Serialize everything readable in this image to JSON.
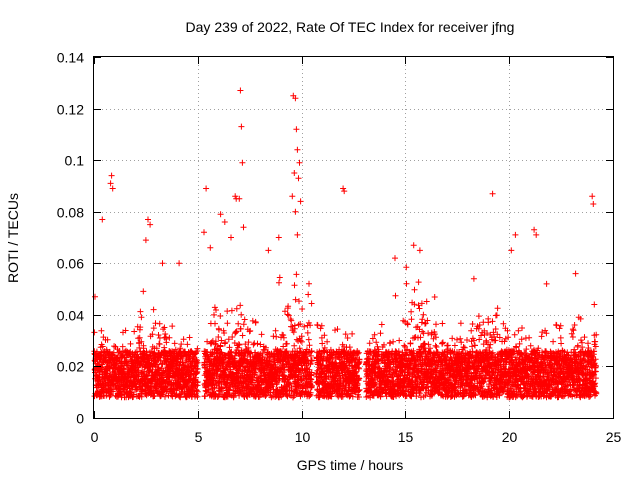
{
  "chart_data": {
    "type": "scatter",
    "title": "Day 239 of 2022, Rate Of TEC Index for receiver jfng",
    "xlabel": "GPS time / hours",
    "ylabel": "ROTI / TECUs",
    "xlim": [
      0,
      25
    ],
    "ylim": [
      0,
      0.14
    ],
    "xticks": [
      0,
      5,
      10,
      15,
      20,
      25
    ],
    "xtick_labels": [
      "0",
      "5",
      "10",
      "15",
      "20",
      "25"
    ],
    "yticks": [
      0,
      0.02,
      0.04,
      0.06,
      0.08,
      0.1,
      0.12,
      0.14
    ],
    "ytick_labels": [
      "0",
      "0.02",
      "0.04",
      "0.06",
      "0.08",
      "0.1",
      "0.12",
      "0.14"
    ],
    "grid": true,
    "marker": "+",
    "color": "#ff0000",
    "series": [
      {
        "name": "ROTI",
        "outliers": [
          [
            0.05,
            0.047
          ],
          [
            0.4,
            0.077
          ],
          [
            0.8,
            0.091
          ],
          [
            0.85,
            0.094
          ],
          [
            0.9,
            0.089
          ],
          [
            2.6,
            0.077
          ],
          [
            2.7,
            0.075
          ],
          [
            2.5,
            0.069
          ],
          [
            3.3,
            0.06
          ],
          [
            4.1,
            0.06
          ],
          [
            5.4,
            0.089
          ],
          [
            5.3,
            0.072
          ],
          [
            5.6,
            0.066
          ],
          [
            6.1,
            0.079
          ],
          [
            6.3,
            0.076
          ],
          [
            6.6,
            0.07
          ],
          [
            6.8,
            0.086
          ],
          [
            6.85,
            0.085
          ],
          [
            7.05,
            0.127
          ],
          [
            7.1,
            0.113
          ],
          [
            7.15,
            0.099
          ],
          [
            7.0,
            0.085
          ],
          [
            7.2,
            0.074
          ],
          [
            8.4,
            0.065
          ],
          [
            8.9,
            0.07
          ],
          [
            9.6,
            0.125
          ],
          [
            9.7,
            0.124
          ],
          [
            9.75,
            0.112
          ],
          [
            9.8,
            0.104
          ],
          [
            9.65,
            0.095
          ],
          [
            9.9,
            0.099
          ],
          [
            9.85,
            0.093
          ],
          [
            9.55,
            0.086
          ],
          [
            9.95,
            0.084
          ],
          [
            9.7,
            0.08
          ],
          [
            9.8,
            0.071
          ],
          [
            12.0,
            0.089
          ],
          [
            12.05,
            0.088
          ],
          [
            14.5,
            0.062
          ],
          [
            15.4,
            0.067
          ],
          [
            15.7,
            0.065
          ],
          [
            18.3,
            0.054
          ],
          [
            19.2,
            0.087
          ],
          [
            20.1,
            0.065
          ],
          [
            20.3,
            0.071
          ],
          [
            21.2,
            0.073
          ],
          [
            21.3,
            0.071
          ],
          [
            21.8,
            0.052
          ],
          [
            23.2,
            0.056
          ],
          [
            24.0,
            0.086
          ],
          [
            24.05,
            0.083
          ],
          [
            24.1,
            0.044
          ]
        ]
      }
    ]
  }
}
